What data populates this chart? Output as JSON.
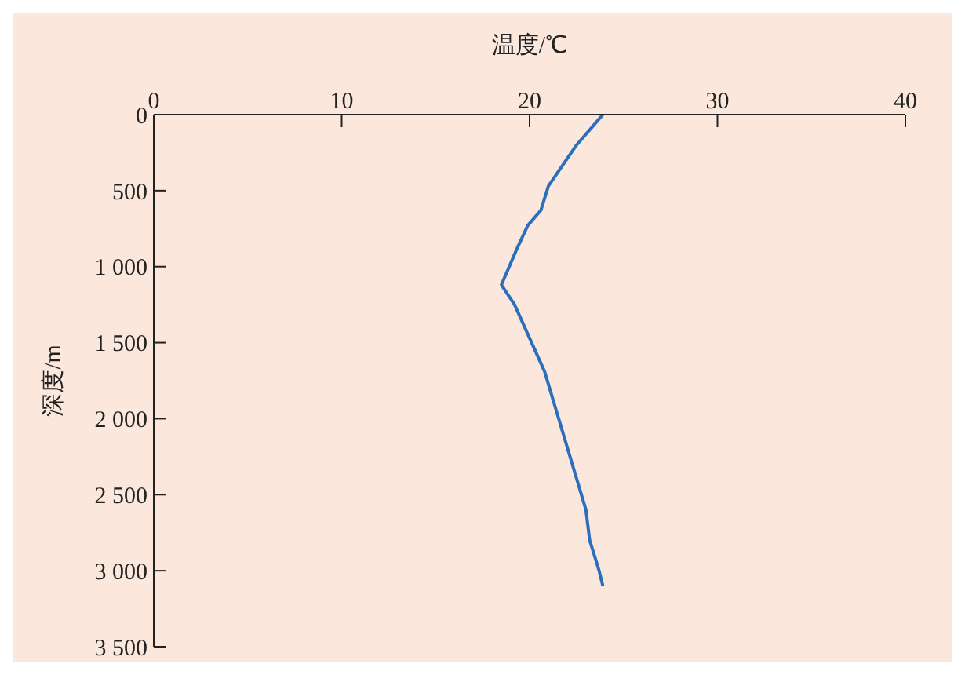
{
  "chart_data": {
    "type": "line",
    "xlabel": "温度/℃",
    "ylabel": "深度/m",
    "x": [
      23.9,
      22.5,
      21.0,
      20.6,
      19.9,
      19.3,
      18.5,
      19.2,
      20.8,
      23.0,
      23.2,
      23.7,
      23.9
    ],
    "values": [
      0,
      200,
      470,
      630,
      730,
      890,
      1120,
      1250,
      1690,
      2600,
      2800,
      3000,
      3100
    ],
    "color": "#2a6ebd",
    "marker": "none",
    "line_style": "solid",
    "xlim": [
      0,
      40
    ],
    "xticks": [
      0,
      10,
      20,
      30,
      40
    ],
    "ylim": [
      3500,
      0
    ],
    "yticks": [
      0,
      500,
      {
        "value": 1000,
        "label": "1 000"
      },
      {
        "value": 1500,
        "label": "1 500"
      },
      {
        "value": 2000,
        "label": "2 000"
      },
      {
        "value": 2500,
        "label": "2 500"
      },
      {
        "value": 3000,
        "label": "3 000"
      },
      {
        "value": 3500,
        "label": "3 500"
      }
    ]
  }
}
